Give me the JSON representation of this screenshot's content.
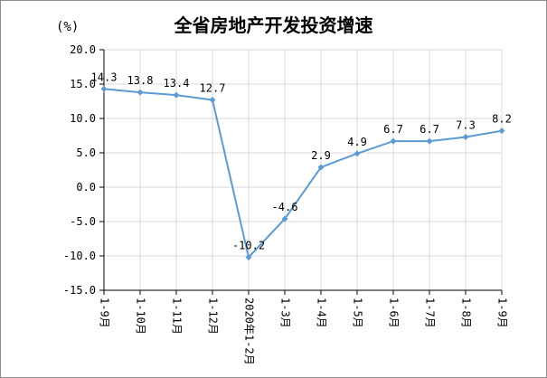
{
  "chart_data": {
    "type": "line",
    "title": "全省房地产开发投资增速",
    "unit": "(%)",
    "categories": [
      "1-9月",
      "1-10月",
      "1-11月",
      "1-12月",
      "2020年1-2月",
      "1-3月",
      "1-4月",
      "1-5月",
      "1-6月",
      "1-7月",
      "1-8月",
      "1-9月"
    ],
    "series": [
      {
        "values": [
          14.3,
          13.8,
          13.4,
          12.7,
          -10.2,
          -4.6,
          2.9,
          4.9,
          6.7,
          6.7,
          7.3,
          8.2
        ],
        "labels": [
          "14.3",
          "13.8",
          "13.4",
          "12.7",
          "-10.2",
          "-4.6",
          "2.9",
          "4.9",
          "6.7",
          "6.7",
          "7.3",
          "8.2"
        ]
      }
    ],
    "y_ticks": [
      "20.0",
      "15.0",
      "10.0",
      "5.0",
      "0.0",
      "-5.0",
      "-10.0",
      "-15.0"
    ],
    "ylim": [
      -15,
      20
    ],
    "grid": true,
    "legend": "none",
    "colors": {
      "line": "#5b9bd5",
      "grid": "#d9d9d9",
      "axis": "#000000",
      "border": "#8c8c8c"
    }
  }
}
